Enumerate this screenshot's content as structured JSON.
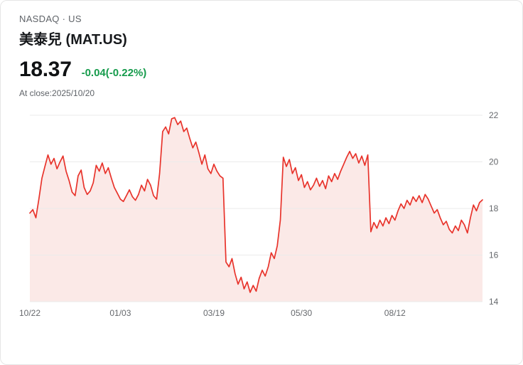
{
  "header": {
    "exchange": "NASDAQ · US",
    "title": "美泰兒 (MAT.US)",
    "price": "18.37",
    "change": "-0.04(-0.22%)",
    "as_of": "At close:2025/10/20"
  },
  "colors": {
    "line": "#e8332b",
    "fill": "#fbe9e7",
    "grid": "#ebebeb",
    "axis_text": "#66696d",
    "change_green": "#169b4c"
  },
  "chart_data": {
    "type": "area",
    "title": "MAT.US price history, 10/22 to 10/20 (1 year)",
    "ylim": [
      14,
      22
    ],
    "y_ticks": [
      22,
      20,
      18,
      16,
      14
    ],
    "x_tick_labels": [
      "10/22",
      "01/03",
      "03/19",
      "05/30",
      "08/12"
    ],
    "x_tick_indices": [
      0,
      30,
      61,
      90,
      121
    ],
    "grid": true,
    "legend": "none",
    "values": [
      17.8,
      17.95,
      17.6,
      18.4,
      19.3,
      19.8,
      20.3,
      19.9,
      20.15,
      19.7,
      20.0,
      20.25,
      19.6,
      19.2,
      18.7,
      18.55,
      19.4,
      19.65,
      18.9,
      18.6,
      18.75,
      19.1,
      19.85,
      19.6,
      19.95,
      19.5,
      19.75,
      19.3,
      18.9,
      18.65,
      18.4,
      18.3,
      18.55,
      18.8,
      18.5,
      18.35,
      18.6,
      19.0,
      18.75,
      19.25,
      19.0,
      18.55,
      18.4,
      19.5,
      21.3,
      21.5,
      21.2,
      21.85,
      21.9,
      21.6,
      21.75,
      21.3,
      21.45,
      21.0,
      20.6,
      20.85,
      20.4,
      19.9,
      20.3,
      19.7,
      19.5,
      19.9,
      19.6,
      19.4,
      19.3,
      15.7,
      15.5,
      15.85,
      15.2,
      14.75,
      15.05,
      14.55,
      14.85,
      14.4,
      14.7,
      14.45,
      15.0,
      15.35,
      15.1,
      15.5,
      16.1,
      15.85,
      16.4,
      17.5,
      20.2,
      19.8,
      20.1,
      19.5,
      19.75,
      19.2,
      19.45,
      18.9,
      19.15,
      18.8,
      19.0,
      19.3,
      18.95,
      19.2,
      18.85,
      19.4,
      19.15,
      19.5,
      19.25,
      19.6,
      19.9,
      20.2,
      20.45,
      20.15,
      20.35,
      19.95,
      20.25,
      19.85,
      20.3,
      17.0,
      17.4,
      17.15,
      17.5,
      17.25,
      17.6,
      17.35,
      17.7,
      17.5,
      17.9,
      18.2,
      18.0,
      18.35,
      18.15,
      18.5,
      18.3,
      18.55,
      18.25,
      18.6,
      18.4,
      18.1,
      17.8,
      17.95,
      17.6,
      17.3,
      17.45,
      17.1,
      16.95,
      17.25,
      17.05,
      17.5,
      17.3,
      16.95,
      17.6,
      18.15,
      17.9,
      18.25,
      18.37
    ]
  }
}
